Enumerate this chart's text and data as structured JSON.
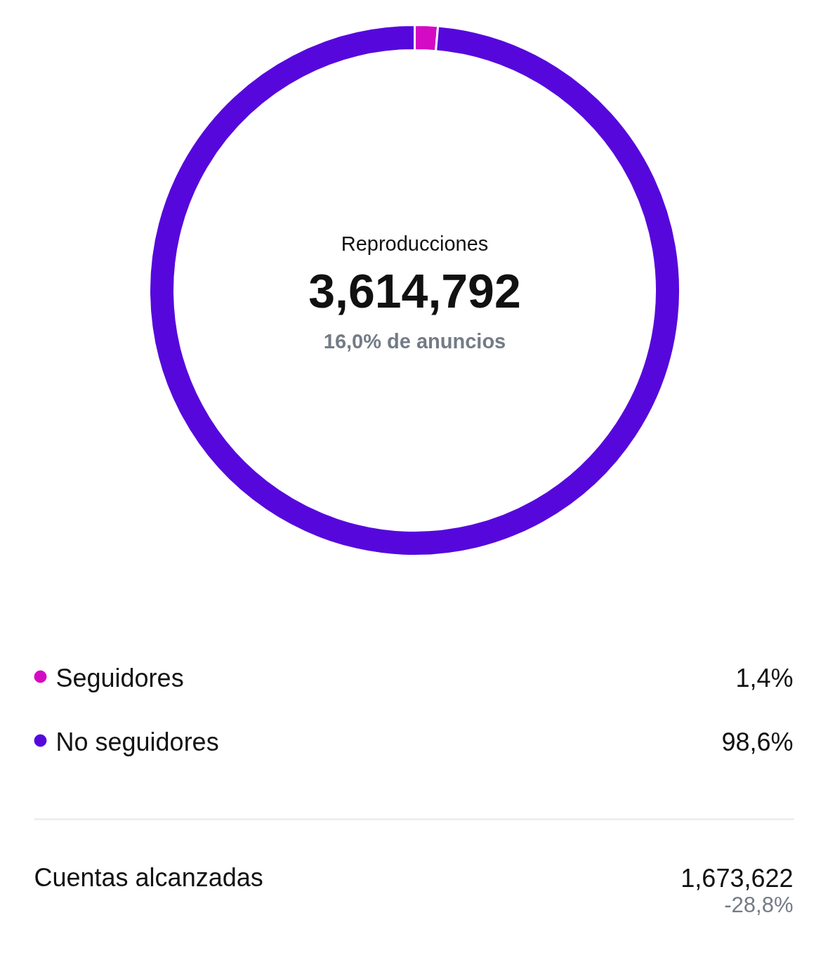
{
  "chart_data": {
    "type": "donut",
    "title": "Reproducciones",
    "categories": [
      "Seguidores",
      "No seguidores"
    ],
    "values": [
      1.4,
      98.6
    ],
    "colors": [
      "#d40bc3",
      "#5608dc"
    ],
    "value_labels": [
      "1,4%",
      "98,6%"
    ],
    "legend": "bottom",
    "annotations": [
      "3,614,792",
      "16,0% de anuncios",
      "Cuentas alcanzadas",
      "1,673,622",
      "-28,8%"
    ]
  }
}
